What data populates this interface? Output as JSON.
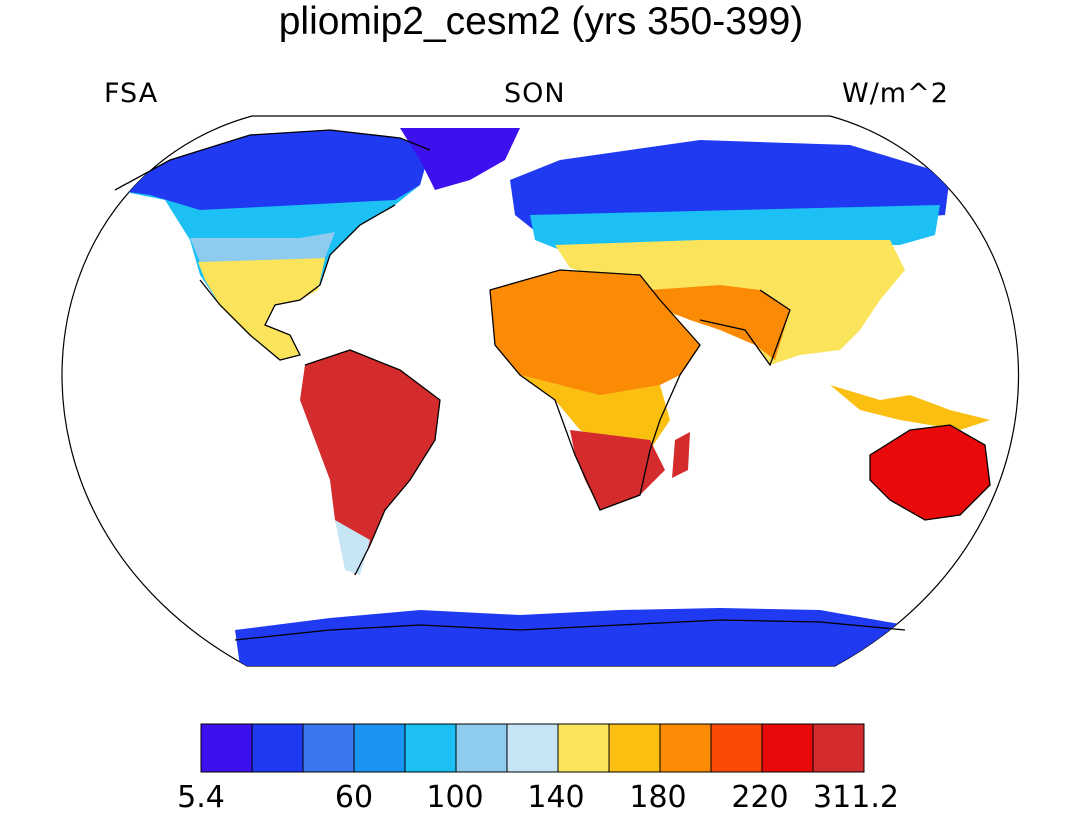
{
  "title": "pliomip2_cesm2 (yrs 350-399)",
  "variable": "FSA",
  "season": "SON",
  "units": "W/m^2",
  "colorbar": {
    "colors": [
      "#3d10f0",
      "#1f3af0",
      "#3a78f0",
      "#1a94f2",
      "#1cc0f5",
      "#8ecbee",
      "#c6e6f6",
      "#fbe45c",
      "#fbbf12",
      "#fb8a05",
      "#fb4a05",
      "#e80a0a",
      "#d42c2c"
    ],
    "tick_labels": [
      "5.4",
      "60",
      "100",
      "140",
      "180",
      "220",
      "311.2"
    ]
  }
}
